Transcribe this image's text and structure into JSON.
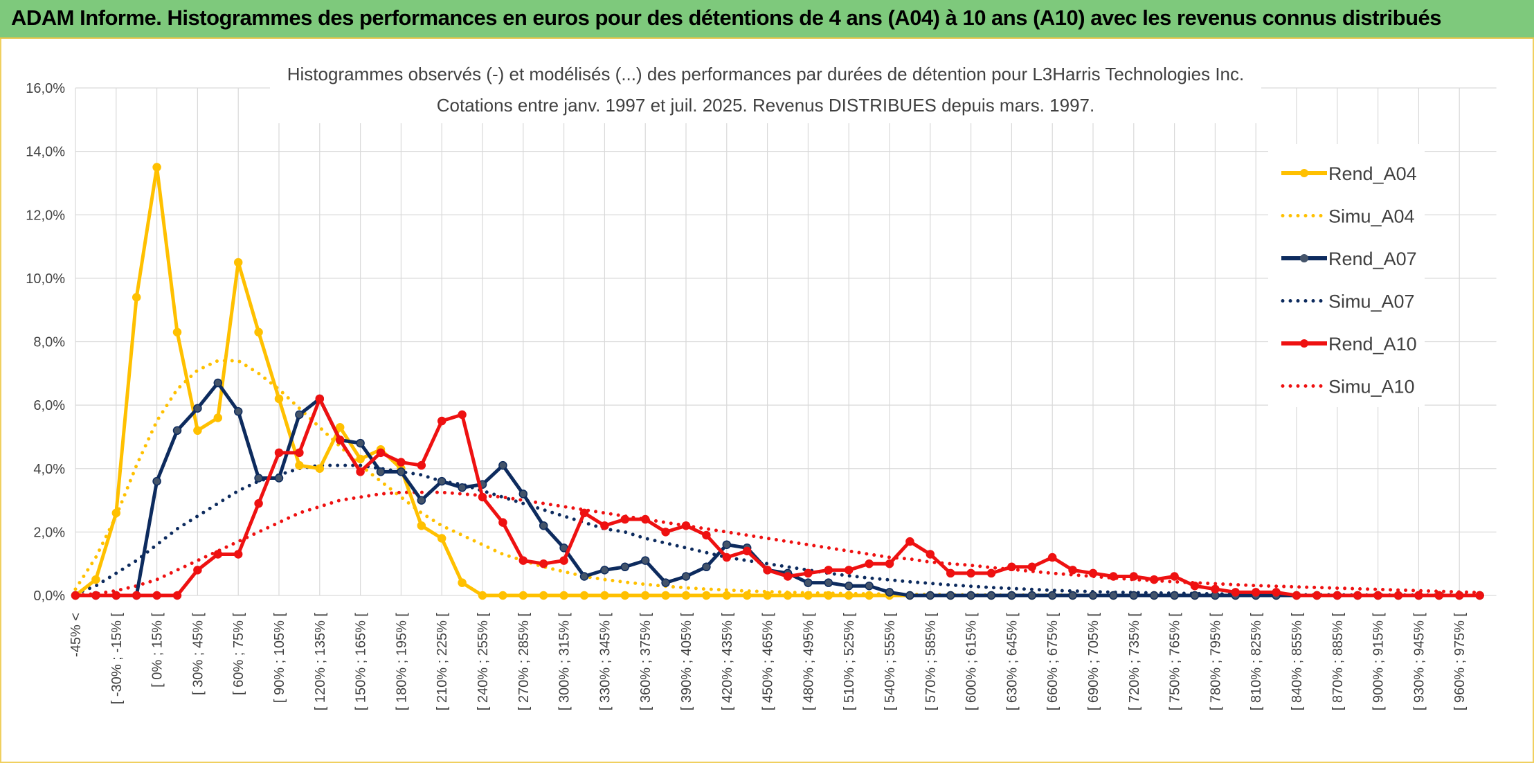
{
  "page": {
    "banner_title": "ADAM Informe. Histogrammes des performances en euros pour des détentions de 4 ans (A04) à 10 ans (A10) avec les revenus connus distribués"
  },
  "colors": {
    "banner_bg": "#7ec97c",
    "a04": "#ffc000",
    "a07": "#0d2b5e",
    "a10": "#ee1111",
    "grid": "#d9d9d9"
  },
  "chart_data": {
    "type": "line",
    "title_lines": [
      "Histogrammes observés (-) et modélisés (...) des performances par durées de détention pour L3Harris Technologies Inc.",
      "Cotations entre janv. 1997 et juil. 2025. Revenus DISTRIBUES depuis mars. 1997."
    ],
    "ylim": [
      0,
      16
    ],
    "y_ticks": [
      "0,0%",
      "2,0%",
      "4,0%",
      "6,0%",
      "8,0%",
      "10,0%",
      "12,0%",
      "14,0%",
      "16,0%"
    ],
    "y_tick_values": [
      0,
      2,
      4,
      6,
      8,
      10,
      12,
      14,
      16
    ],
    "x_tick_labels": [
      "-45% <",
      "[ -30% ; -15% [",
      "[ 0% ; 15% [",
      "[ 30% ; 45% [",
      "[ 60% ; 75% [",
      "[ 90% ; 105% [",
      "[ 120% ; 135% [",
      "[ 150% ; 165% [",
      "[ 180% ; 195% [",
      "[ 210% ; 225% [",
      "[ 240% ; 255% [",
      "[ 270% ; 285% [",
      "[ 300% ; 315% [",
      "[ 330% ; 345% [",
      "[ 360% ; 375% [",
      "[ 390% ; 405% [",
      "[ 420% ; 435% [",
      "[ 450% ; 465% [",
      "[ 480% ; 495% [",
      "[ 510% ; 525% [",
      "[ 540% ; 555% [",
      "[ 570% ; 585% [",
      "[ 600% ; 615% [",
      "[ 630% ; 645% [",
      "[ 660% ; 675% [",
      "[ 690% ; 705% [",
      "[ 720% ; 735% [",
      "[ 750% ; 765% [",
      "[ 780% ; 795% [",
      "[ 810% ; 825% [",
      "[ 840% ; 855% [",
      "[ 870% ; 885% [",
      "[ 900% ; 915% [",
      "[ 930% ; 945% [",
      "[ 960% ; 975% ["
    ],
    "n_categories": 70,
    "legend_position": "right",
    "gridlines": true,
    "series": [
      {
        "name": "Rend_A04",
        "style": "solid-markers",
        "color": "#ffc000",
        "values": [
          0,
          0.5,
          2.6,
          9.4,
          13.5,
          8.3,
          5.2,
          5.6,
          10.5,
          8.3,
          6.2,
          4.1,
          4.0,
          5.3,
          4.3,
          4.6,
          4.0,
          2.2,
          1.8,
          0.4,
          0,
          0,
          0,
          0,
          0,
          0,
          0,
          0,
          0,
          0,
          0,
          0,
          0,
          0,
          0,
          0,
          0,
          0,
          0,
          0,
          0,
          0,
          0,
          0,
          0,
          0,
          0,
          0,
          0,
          0,
          0,
          0,
          0,
          0,
          0,
          0,
          0,
          0,
          0,
          0,
          0,
          0,
          0,
          0,
          0,
          0,
          0,
          0,
          0,
          0
        ]
      },
      {
        "name": "Simu_A04",
        "style": "dotted",
        "color": "#ffc000",
        "values": [
          0.2,
          1.2,
          2.5,
          4.1,
          5.5,
          6.5,
          7.1,
          7.4,
          7.4,
          7.0,
          6.5,
          5.9,
          5.3,
          4.7,
          4.1,
          3.6,
          3.1,
          2.6,
          2.2,
          1.9,
          1.6,
          1.3,
          1.1,
          0.9,
          0.75,
          0.6,
          0.5,
          0.42,
          0.35,
          0.29,
          0.24,
          0.2,
          0.17,
          0.14,
          0.12,
          0.1,
          0.08,
          0.07,
          0.06,
          0.05,
          0.04,
          0.03,
          0.03,
          0.02,
          0.02,
          0.01,
          0.01,
          0.01,
          0.01,
          0.01,
          0,
          0,
          0,
          0,
          0,
          0,
          0,
          0,
          0,
          0,
          0,
          0,
          0,
          0,
          0,
          0,
          0,
          0,
          0,
          0
        ]
      },
      {
        "name": "Rend_A07",
        "style": "solid-markers",
        "color": "#0d2b5e",
        "values": [
          0,
          0,
          0,
          0,
          3.6,
          5.2,
          5.9,
          6.7,
          5.8,
          3.7,
          3.7,
          5.7,
          6.2,
          4.9,
          4.8,
          3.9,
          3.9,
          3.0,
          3.6,
          3.4,
          3.5,
          4.1,
          3.2,
          2.2,
          1.5,
          0.6,
          0.8,
          0.9,
          1.1,
          0.4,
          0.6,
          0.9,
          1.6,
          1.5,
          0.8,
          0.7,
          0.4,
          0.4,
          0.3,
          0.3,
          0.1,
          0,
          0,
          0,
          0,
          0,
          0,
          0,
          0,
          0,
          0,
          0,
          0,
          0,
          0,
          0,
          0,
          0,
          0,
          0,
          0,
          0,
          0,
          0,
          0,
          0,
          0,
          0,
          0,
          0
        ]
      },
      {
        "name": "Simu_A07",
        "style": "dotted",
        "color": "#0d2b5e",
        "values": [
          0.05,
          0.3,
          0.7,
          1.1,
          1.6,
          2.1,
          2.5,
          2.9,
          3.3,
          3.6,
          3.8,
          4.0,
          4.1,
          4.1,
          4.1,
          4.0,
          3.9,
          3.8,
          3.6,
          3.5,
          3.3,
          3.1,
          2.9,
          2.7,
          2.5,
          2.3,
          2.1,
          2.0,
          1.8,
          1.65,
          1.5,
          1.35,
          1.2,
          1.1,
          1.0,
          0.9,
          0.8,
          0.7,
          0.62,
          0.55,
          0.49,
          0.43,
          0.38,
          0.33,
          0.29,
          0.25,
          0.22,
          0.19,
          0.16,
          0.14,
          0.12,
          0.1,
          0.09,
          0.08,
          0.07,
          0.06,
          0.05,
          0.04,
          0.03,
          0.03,
          0.02,
          0.02,
          0.02,
          0.01,
          0.01,
          0.01,
          0.01,
          0.01,
          0.01,
          0.01
        ]
      },
      {
        "name": "Rend_A10",
        "style": "solid-markers",
        "color": "#ee1111",
        "values": [
          0,
          0,
          0,
          0,
          0,
          0,
          0.8,
          1.3,
          1.3,
          2.9,
          4.5,
          4.5,
          6.2,
          4.9,
          3.9,
          4.5,
          4.2,
          4.1,
          5.5,
          5.7,
          3.1,
          2.3,
          1.1,
          1.0,
          1.1,
          2.6,
          2.2,
          2.4,
          2.4,
          2.0,
          2.2,
          1.9,
          1.2,
          1.4,
          0.8,
          0.6,
          0.7,
          0.8,
          0.8,
          1.0,
          1.0,
          1.7,
          1.3,
          0.7,
          0.7,
          0.7,
          0.9,
          0.9,
          1.2,
          0.8,
          0.7,
          0.6,
          0.6,
          0.5,
          0.6,
          0.3,
          0.2,
          0.1,
          0.1,
          0.1,
          0,
          0,
          0,
          0,
          0,
          0,
          0,
          0,
          0,
          0
        ]
      },
      {
        "name": "Simu_A10",
        "style": "dotted",
        "color": "#ee1111",
        "values": [
          0.01,
          0.05,
          0.15,
          0.3,
          0.5,
          0.8,
          1.1,
          1.4,
          1.7,
          2.0,
          2.3,
          2.6,
          2.8,
          3.0,
          3.1,
          3.2,
          3.25,
          3.25,
          3.25,
          3.2,
          3.15,
          3.1,
          3.0,
          2.9,
          2.8,
          2.7,
          2.6,
          2.5,
          2.4,
          2.3,
          2.2,
          2.1,
          2.0,
          1.9,
          1.8,
          1.7,
          1.6,
          1.5,
          1.4,
          1.3,
          1.2,
          1.15,
          1.05,
          1.0,
          0.95,
          0.88,
          0.82,
          0.76,
          0.7,
          0.65,
          0.6,
          0.55,
          0.5,
          0.47,
          0.43,
          0.4,
          0.37,
          0.34,
          0.31,
          0.29,
          0.27,
          0.25,
          0.23,
          0.21,
          0.19,
          0.17,
          0.15,
          0.13,
          0.11,
          0.09
        ]
      }
    ]
  }
}
